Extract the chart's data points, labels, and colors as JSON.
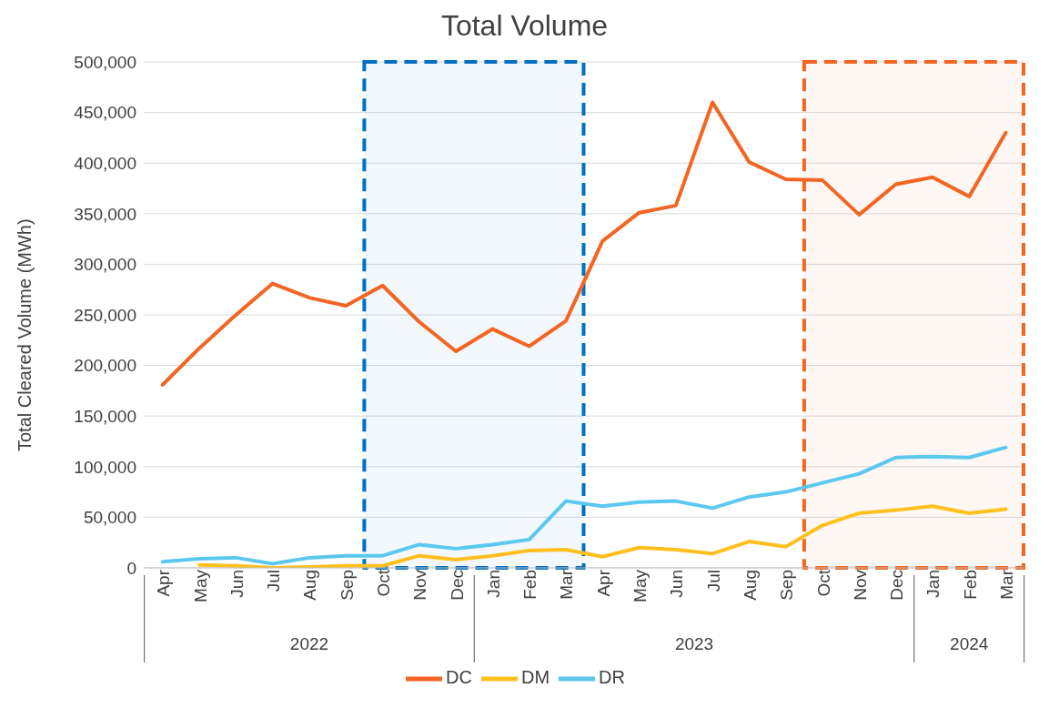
{
  "chart_data": {
    "type": "line",
    "title": "Total Volume",
    "ylabel": "Total Cleared Volume (MWh)",
    "x": [
      "2022-04",
      "2022-05",
      "2022-06",
      "2022-07",
      "2022-08",
      "2022-09",
      "2022-10",
      "2022-11",
      "2022-12",
      "2023-01",
      "2023-02",
      "2023-03",
      "2023-04",
      "2023-05",
      "2023-06",
      "2023-07",
      "2023-08",
      "2023-09",
      "2023-10",
      "2023-11",
      "2023-12",
      "2024-01",
      "2024-02",
      "2024-03"
    ],
    "series": [
      {
        "name": "DC",
        "color": "#f26522",
        "values": [
          181000,
          217000,
          250000,
          281000,
          267000,
          259000,
          279000,
          243000,
          214000,
          236000,
          219000,
          244000,
          323000,
          351000,
          358000,
          460000,
          401000,
          384000,
          383000,
          349000,
          379000,
          386000,
          367000,
          430000
        ]
      },
      {
        "name": "DM",
        "color": "#ffc01f",
        "values": [
          null,
          3000,
          2000,
          0,
          1000,
          2000,
          2000,
          12000,
          8000,
          12000,
          17000,
          18000,
          11000,
          20000,
          18000,
          14000,
          26000,
          21000,
          42000,
          54000,
          57000,
          61000,
          54000,
          58000
        ]
      },
      {
        "name": "DR",
        "color": "#5bc8f0",
        "values": [
          6000,
          9000,
          10000,
          4000,
          10000,
          12000,
          12000,
          23000,
          19000,
          23000,
          28000,
          66000,
          61000,
          65000,
          66000,
          59000,
          70000,
          75000,
          84000,
          93000,
          109000,
          110000,
          109000,
          119000
        ]
      }
    ],
    "xticks": [
      {
        "value": "2022-04",
        "label": "Apr"
      },
      {
        "value": "2022-05",
        "label": "May"
      },
      {
        "value": "2022-06",
        "label": "Jun"
      },
      {
        "value": "2022-07",
        "label": "Jul"
      },
      {
        "value": "2022-08",
        "label": "Aug"
      },
      {
        "value": "2022-09",
        "label": "Sep"
      },
      {
        "value": "2022-10",
        "label": "Oct"
      },
      {
        "value": "2022-11",
        "label": "Nov"
      },
      {
        "value": "2022-12",
        "label": "Dec"
      },
      {
        "value": "2023-01",
        "label": "Jan"
      },
      {
        "value": "2023-02",
        "label": "Feb"
      },
      {
        "value": "2023-03",
        "label": "Mar"
      },
      {
        "value": "2023-04",
        "label": "Apr"
      },
      {
        "value": "2023-05",
        "label": "May"
      },
      {
        "value": "2023-06",
        "label": "Jun"
      },
      {
        "value": "2023-07",
        "label": "Jul"
      },
      {
        "value": "2023-08",
        "label": "Aug"
      },
      {
        "value": "2023-09",
        "label": "Sep"
      },
      {
        "value": "2023-10",
        "label": "Oct"
      },
      {
        "value": "2023-11",
        "label": "Nov"
      },
      {
        "value": "2023-12",
        "label": "Dec"
      },
      {
        "value": "2024-01",
        "label": "Jan"
      },
      {
        "value": "2024-02",
        "label": "Feb"
      },
      {
        "value": "2024-03",
        "label": "Mar"
      }
    ],
    "annotations": [
      "2022",
      "2023",
      "2024"
    ],
    "xlim": [
      "2022-03-16",
      "2024-03-16"
    ],
    "ylim": [
      0,
      500000
    ],
    "yticks": [
      {
        "value": 0,
        "label": "0"
      },
      {
        "value": 50000,
        "label": "50,000"
      },
      {
        "value": 100000,
        "label": "100,000"
      },
      {
        "value": 150000,
        "label": "150,000"
      },
      {
        "value": 200000,
        "label": "200,000"
      },
      {
        "value": 250000,
        "label": "250,000"
      },
      {
        "value": 300000,
        "label": "300,000"
      },
      {
        "value": 350000,
        "label": "350,000"
      },
      {
        "value": 400000,
        "label": "400,000"
      },
      {
        "value": 450000,
        "label": "450,000"
      },
      {
        "value": 500000,
        "label": "500,000"
      }
    ],
    "bands": [
      {
        "axis": "x",
        "from": "2022-09-16",
        "to": "2023-03-16",
        "color": "#0070c0"
      },
      {
        "axis": "x",
        "from": "2023-09-16",
        "to": "2024-03-16",
        "color": "#f26522"
      }
    ],
    "grid": "y",
    "legend": "bottom",
    "marker": "none",
    "line_style": "solid"
  }
}
